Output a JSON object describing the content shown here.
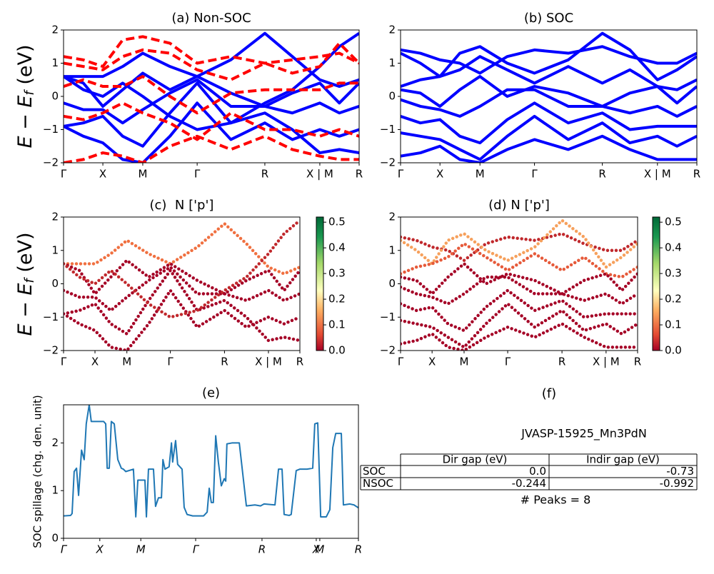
{
  "chart_data": [
    {
      "type": "line",
      "title": "(a) Non-SOC",
      "x": [
        0,
        0.067,
        0.133,
        0.2,
        0.268,
        0.36,
        0.452,
        0.566,
        0.681,
        0.774,
        0.867,
        0.933,
        1
      ],
      "xlim": [
        0,
        1
      ],
      "xticks": [
        {
          "value": 0,
          "label": "Γ"
        },
        {
          "value": 0.133,
          "label": "X"
        },
        {
          "value": 0.268,
          "label": "M"
        },
        {
          "value": 0.452,
          "label": "Γ"
        },
        {
          "value": 0.681,
          "label": "R"
        },
        {
          "value": 0.867,
          "label": "X | M"
        },
        {
          "value": 1,
          "label": "R"
        }
      ],
      "ylim": [
        -2,
        2
      ],
      "yticks": [
        {
          "value": -2,
          "label": "−2"
        },
        {
          "value": -1,
          "label": "−1"
        },
        0,
        1,
        2
      ],
      "series": [
        {
          "color": "#0000ff",
          "style": "solid",
          "values": [
            0.6,
            0.6,
            0.6,
            0.9,
            1.3,
            0.9,
            0.6,
            1.1,
            1.9,
            1.2,
            0.5,
            0.3,
            0.5
          ]
        },
        {
          "color": "#0000ff",
          "style": "solid",
          "values": [
            0.6,
            0.4,
            -0.3,
            0.2,
            0.7,
            0.2,
            0.6,
            0.1,
            -0.3,
            0.1,
            0.4,
            -0.2,
            0.4
          ]
        },
        {
          "color": "#0000ff",
          "style": "solid",
          "values": [
            -0.2,
            -0.4,
            -0.4,
            -0.8,
            -0.4,
            0.1,
            0.5,
            -0.3,
            -0.3,
            -0.5,
            -0.2,
            -0.5,
            -0.3
          ]
        },
        {
          "color": "#0000ff",
          "style": "solid",
          "values": [
            -0.9,
            -0.8,
            -0.6,
            -1.2,
            -1.5,
            -0.5,
            0.4,
            -0.8,
            -0.5,
            -1.0,
            -1.7,
            -1.6,
            -1.7
          ]
        },
        {
          "color": "#0000ff",
          "style": "solid",
          "values": [
            -0.9,
            -1.2,
            -1.4,
            -1.9,
            -2.0,
            -1.2,
            -0.2,
            -1.3,
            -0.8,
            -1.3,
            -1.0,
            -1.2,
            -1.0
          ]
        },
        {
          "color": "#0000ff",
          "style": "solid",
          "values": [
            0.6,
            0.2,
            0.0,
            0.4,
            0.0,
            -0.6,
            -1.0,
            -0.8,
            -0.2,
            0.2,
            0.9,
            1.5,
            1.9
          ]
        },
        {
          "color": "#ff0000",
          "style": "dashed",
          "values": [
            1.2,
            1.1,
            0.9,
            1.7,
            1.8,
            1.6,
            1.0,
            1.2,
            1.0,
            1.1,
            1.2,
            1.3,
            1.0
          ]
        },
        {
          "color": "#ff0000",
          "style": "dashed",
          "values": [
            1.0,
            0.9,
            0.8,
            1.2,
            1.4,
            1.3,
            0.8,
            0.5,
            1.0,
            0.7,
            0.9,
            1.6,
            1.0
          ]
        },
        {
          "color": "#ff0000",
          "style": "dashed",
          "values": [
            0.3,
            0.5,
            0.3,
            0.3,
            0.6,
            0.0,
            -0.5,
            0.1,
            0.2,
            0.2,
            0.2,
            0.4,
            0.4
          ]
        },
        {
          "color": "#ff0000",
          "style": "dashed",
          "values": [
            -0.6,
            -0.7,
            -0.5,
            -0.2,
            -0.5,
            -0.8,
            -1.3,
            -0.5,
            -1.0,
            -1.0,
            -1.2,
            -1.0,
            -1.2
          ]
        },
        {
          "color": "#ff0000",
          "style": "dashed",
          "values": [
            -2.0,
            -1.9,
            -1.7,
            -1.8,
            -2.0,
            -1.5,
            -1.2,
            -1.6,
            -1.2,
            -1.6,
            -1.8,
            -1.9,
            -1.9
          ]
        }
      ]
    },
    {
      "type": "line",
      "title": "(b) SOC",
      "x": [
        0,
        0.067,
        0.133,
        0.2,
        0.268,
        0.36,
        0.452,
        0.566,
        0.681,
        0.774,
        0.867,
        0.933,
        1
      ],
      "xlim": [
        0,
        1
      ],
      "xticks": [
        {
          "value": 0,
          "label": "Γ"
        },
        {
          "value": 0.133,
          "label": "X"
        },
        {
          "value": 0.268,
          "label": "M"
        },
        {
          "value": 0.452,
          "label": "Γ"
        },
        {
          "value": 0.681,
          "label": "R"
        },
        {
          "value": 0.867,
          "label": "X | M"
        },
        {
          "value": 1,
          "label": "R"
        }
      ],
      "ylim": [
        -2,
        2
      ],
      "yticks": [
        {
          "value": -2,
          "label": "−2"
        },
        {
          "value": -1,
          "label": "−1"
        },
        0,
        1,
        2
      ],
      "series": [
        {
          "color": "#0000ff",
          "style": "solid",
          "values": [
            1.4,
            1.3,
            1.1,
            1.0,
            0.7,
            1.2,
            1.4,
            1.3,
            1.5,
            1.2,
            1.0,
            1.0,
            1.3
          ]
        },
        {
          "color": "#0000ff",
          "style": "solid",
          "values": [
            1.3,
            1.0,
            0.6,
            1.3,
            1.5,
            1.0,
            0.7,
            1.1,
            1.9,
            1.4,
            0.5,
            0.8,
            1.2
          ]
        },
        {
          "color": "#0000ff",
          "style": "solid",
          "values": [
            0.3,
            0.5,
            0.6,
            0.8,
            1.2,
            0.8,
            0.4,
            0.9,
            0.4,
            0.8,
            0.3,
            0.2,
            0.5
          ]
        },
        {
          "color": "#0000ff",
          "style": "solid",
          "values": [
            0.2,
            0.1,
            -0.3,
            0.2,
            0.6,
            0.0,
            0.3,
            0.1,
            -0.3,
            0.1,
            0.3,
            -0.2,
            0.3
          ]
        },
        {
          "color": "#0000ff",
          "style": "solid",
          "values": [
            -0.1,
            -0.3,
            -0.4,
            -0.6,
            -0.3,
            0.2,
            0.2,
            -0.3,
            -0.3,
            -0.5,
            -0.3,
            -0.6,
            -0.3
          ]
        },
        {
          "color": "#0000ff",
          "style": "solid",
          "values": [
            -0.6,
            -0.8,
            -0.7,
            -1.2,
            -1.4,
            -0.7,
            -0.2,
            -0.8,
            -0.5,
            -1.0,
            -0.9,
            -0.9,
            -0.9
          ]
        },
        {
          "color": "#0000ff",
          "style": "solid",
          "values": [
            -1.1,
            -1.2,
            -1.3,
            -1.6,
            -1.9,
            -1.2,
            -0.6,
            -1.3,
            -0.8,
            -1.4,
            -1.2,
            -1.5,
            -1.2
          ]
        },
        {
          "color": "#0000ff",
          "style": "solid",
          "values": [
            -1.8,
            -1.7,
            -1.5,
            -1.9,
            -2.0,
            -1.6,
            -1.3,
            -1.6,
            -1.2,
            -1.6,
            -1.9,
            -1.9,
            -1.9
          ]
        }
      ]
    },
    {
      "type": "scatter",
      "title": "(c)  N ['p']",
      "x": [
        0,
        0.067,
        0.133,
        0.2,
        0.268,
        0.36,
        0.452,
        0.566,
        0.681,
        0.774,
        0.867,
        0.933,
        1
      ],
      "xlim": [
        0,
        1
      ],
      "xticks": [
        {
          "value": 0,
          "label": "Γ"
        },
        {
          "value": 0.133,
          "label": "X"
        },
        {
          "value": 0.268,
          "label": "M"
        },
        {
          "value": 0.452,
          "label": "Γ"
        },
        {
          "value": 0.681,
          "label": "R"
        },
        {
          "value": 0.867,
          "label": "X | M"
        },
        {
          "value": 1,
          "label": "R"
        }
      ],
      "ylim": [
        -2,
        2
      ],
      "yticks": [
        {
          "value": -2,
          "label": "−2"
        },
        {
          "value": -1,
          "label": "−1"
        },
        0,
        1,
        2
      ],
      "clim": [
        0,
        0.52
      ],
      "cbar_ticks": [
        {
          "value": 0,
          "label": "0.0"
        },
        {
          "value": 0.1,
          "label": "0.1"
        },
        {
          "value": 0.2,
          "label": "0.2"
        },
        {
          "value": 0.3,
          "label": "0.3"
        },
        {
          "value": 0.4,
          "label": "0.4"
        },
        {
          "value": 0.5,
          "label": "0.5"
        }
      ],
      "series": [
        {
          "color": "#f07040",
          "values": [
            0.6,
            0.6,
            0.6,
            0.9,
            1.3,
            0.9,
            0.6,
            1.1,
            1.8,
            1.2,
            0.5,
            0.3,
            0.5
          ]
        },
        {
          "color": "#a50026",
          "values": [
            0.6,
            0.4,
            -0.3,
            0.2,
            0.7,
            0.2,
            0.6,
            0.1,
            -0.3,
            0.1,
            0.4,
            -0.2,
            0.4
          ]
        },
        {
          "color": "#a50026",
          "values": [
            -0.2,
            -0.4,
            -0.4,
            -0.8,
            -0.4,
            0.1,
            0.5,
            -0.3,
            -0.3,
            -0.5,
            -0.2,
            -0.5,
            -0.3
          ]
        },
        {
          "color": "#a50026",
          "values": [
            -0.9,
            -0.8,
            -0.6,
            -1.2,
            -1.5,
            -0.5,
            0.4,
            -0.8,
            -0.5,
            -1.0,
            -1.7,
            -1.6,
            -1.7
          ]
        },
        {
          "color": "#a50026",
          "values": [
            -0.9,
            -1.2,
            -1.4,
            -1.9,
            -2.0,
            -1.2,
            -0.2,
            -1.3,
            -0.8,
            -1.3,
            -1.0,
            -1.2,
            -1.0
          ]
        },
        {
          "color": "#c0282c",
          "values": [
            0.6,
            0.2,
            0.0,
            0.4,
            0.0,
            -0.6,
            -1.0,
            -0.8,
            -0.2,
            0.2,
            0.9,
            1.5,
            1.9
          ]
        }
      ]
    },
    {
      "type": "scatter",
      "title": "(d) N ['p']",
      "x": [
        0,
        0.067,
        0.133,
        0.2,
        0.268,
        0.36,
        0.452,
        0.566,
        0.681,
        0.774,
        0.867,
        0.933,
        1
      ],
      "xlim": [
        0,
        1
      ],
      "xticks": [
        {
          "value": 0,
          "label": "Γ"
        },
        {
          "value": 0.133,
          "label": "X"
        },
        {
          "value": 0.268,
          "label": "M"
        },
        {
          "value": 0.452,
          "label": "Γ"
        },
        {
          "value": 0.681,
          "label": "R"
        },
        {
          "value": 0.867,
          "label": "X | M"
        },
        {
          "value": 1,
          "label": "R"
        }
      ],
      "ylim": [
        -2,
        2
      ],
      "yticks": [
        {
          "value": -2,
          "label": "−2"
        },
        {
          "value": -1,
          "label": "−1"
        },
        0,
        1,
        2
      ],
      "clim": [
        0,
        0.52
      ],
      "cbar_ticks": [
        {
          "value": 0,
          "label": "0.0"
        },
        {
          "value": 0.1,
          "label": "0.1"
        },
        {
          "value": 0.2,
          "label": "0.2"
        },
        {
          "value": 0.3,
          "label": "0.3"
        },
        {
          "value": 0.4,
          "label": "0.4"
        },
        {
          "value": 0.5,
          "label": "0.5"
        }
      ],
      "series": [
        {
          "color": "#c0282c",
          "values": [
            1.4,
            1.3,
            1.1,
            1.0,
            0.7,
            1.2,
            1.4,
            1.3,
            1.5,
            1.2,
            1.0,
            1.0,
            1.3
          ]
        },
        {
          "color": "#f6a05c",
          "values": [
            1.3,
            1.0,
            0.6,
            1.3,
            1.5,
            1.0,
            0.7,
            1.1,
            1.9,
            1.4,
            0.5,
            0.8,
            1.2
          ]
        },
        {
          "color": "#e65a3a",
          "values": [
            0.3,
            0.5,
            0.6,
            0.8,
            1.2,
            0.8,
            0.4,
            0.9,
            0.4,
            0.8,
            0.3,
            0.2,
            0.5
          ]
        },
        {
          "color": "#a50026",
          "values": [
            0.2,
            0.1,
            -0.3,
            0.2,
            0.6,
            0.0,
            0.3,
            0.1,
            -0.3,
            0.1,
            0.3,
            -0.2,
            0.3
          ]
        },
        {
          "color": "#a50026",
          "values": [
            -0.1,
            -0.3,
            -0.4,
            -0.6,
            -0.3,
            0.2,
            0.2,
            -0.3,
            -0.3,
            -0.5,
            -0.3,
            -0.6,
            -0.3
          ]
        },
        {
          "color": "#a50026",
          "values": [
            -0.6,
            -0.8,
            -0.7,
            -1.2,
            -1.4,
            -0.7,
            -0.2,
            -0.8,
            -0.5,
            -1.0,
            -0.9,
            -0.9,
            -0.9
          ]
        },
        {
          "color": "#a50026",
          "values": [
            -1.1,
            -1.2,
            -1.3,
            -1.6,
            -1.9,
            -1.2,
            -0.6,
            -1.3,
            -0.8,
            -1.4,
            -1.2,
            -1.5,
            -1.2
          ]
        },
        {
          "color": "#a50026",
          "values": [
            -1.8,
            -1.7,
            -1.5,
            -1.9,
            -2.0,
            -1.6,
            -1.3,
            -1.6,
            -1.2,
            -1.6,
            -1.9,
            -1.9,
            -1.9
          ]
        }
      ]
    },
    {
      "type": "line",
      "title": "(e)",
      "ylabel": "SOC spillage (chg. den. unit)",
      "italic_ticks": true,
      "x": [
        0,
        0.024,
        0.029,
        0.036,
        0.044,
        0.051,
        0.061,
        0.07,
        0.077,
        0.087,
        0.094,
        0.136,
        0.143,
        0.148,
        0.155,
        0.162,
        0.172,
        0.184,
        0.196,
        0.203,
        0.211,
        0.237,
        0.245,
        0.252,
        0.276,
        0.281,
        0.288,
        0.305,
        0.312,
        0.322,
        0.332,
        0.337,
        0.344,
        0.358,
        0.366,
        0.37,
        0.38,
        0.387,
        0.402,
        0.409,
        0.419,
        0.438,
        0.475,
        0.487,
        0.494,
        0.501,
        0.508,
        0.516,
        0.525,
        0.535,
        0.545,
        0.55,
        0.554,
        0.571,
        0.596,
        0.62,
        0.649,
        0.668,
        0.68,
        0.717,
        0.729,
        0.741,
        0.748,
        0.765,
        0.772,
        0.789,
        0.801,
        0.826,
        0.845,
        0.852,
        0.862,
        0.872,
        0.891,
        0.903,
        0.913,
        0.923,
        0.942,
        0.949,
        0.971,
        0.985,
        1
      ],
      "values": [
        0.47,
        0.48,
        0.52,
        1.4,
        1.47,
        0.9,
        1.85,
        1.65,
        2.4,
        2.8,
        2.45,
        2.45,
        2.4,
        1.47,
        1.47,
        2.45,
        2.4,
        1.65,
        1.47,
        1.45,
        1.4,
        1.45,
        0.45,
        1.22,
        1.22,
        0.45,
        1.45,
        1.45,
        0.67,
        0.85,
        0.85,
        1.65,
        1.45,
        1.5,
        2.0,
        1.6,
        2.05,
        1.55,
        1.45,
        0.65,
        0.5,
        0.47,
        0.47,
        0.55,
        1.05,
        0.75,
        0.75,
        2.15,
        1.6,
        1.1,
        1.25,
        1.2,
        1.98,
        2.0,
        2.0,
        0.68,
        0.7,
        0.68,
        0.72,
        0.7,
        1.45,
        1.45,
        0.5,
        0.48,
        0.5,
        1.42,
        1.45,
        1.45,
        1.47,
        2.4,
        2.42,
        0.45,
        0.45,
        0.6,
        1.9,
        2.2,
        2.2,
        0.7,
        0.72,
        0.7,
        0.64
      ],
      "color": "#1f77b4",
      "xlim": [
        0,
        1
      ],
      "xticks": [
        {
          "value": 0,
          "label": "Γ"
        },
        {
          "value": 0.123,
          "label": "X"
        },
        {
          "value": 0.262,
          "label": "M"
        },
        {
          "value": 0.448,
          "label": "Γ"
        },
        {
          "value": 0.673,
          "label": "R"
        },
        {
          "value": 0.857,
          "label": "X"
        },
        {
          "value": 0.869,
          "label": "M"
        },
        {
          "value": 1,
          "label": "R"
        }
      ],
      "ylim": [
        0,
        2.8
      ],
      "yticks": [
        0,
        1,
        2
      ]
    }
  ],
  "band_ylabel": {
    "main": "E − E",
    "sub": "f",
    "unit": " (eV)"
  },
  "panel_f": {
    "title": "(f)",
    "name": "JVASP-15925_Mn3PdN",
    "header": [
      "Dir gap (eV)",
      "Indir gap (eV)"
    ],
    "rows": [
      [
        "SOC",
        "0.0",
        "-0.73"
      ],
      [
        "NSOC",
        "-0.244",
        "-0.992"
      ]
    ],
    "footer": "# Peaks = 8"
  }
}
